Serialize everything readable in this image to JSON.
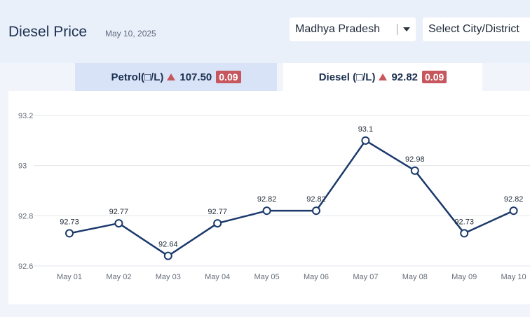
{
  "header": {
    "title": "Diesel Price",
    "date": "May 10, 2025",
    "state_select": "Madhya Pradesh",
    "city_select": "Select City/District"
  },
  "tabs": {
    "petrol": {
      "label": "Petrol(□/L)",
      "price": "107.50",
      "change": "0.09"
    },
    "diesel": {
      "label": "Diesel (□/L)",
      "price": "92.82",
      "change": "0.09"
    }
  },
  "colors": {
    "line": "#1b3a6b",
    "accent": "#c7575e",
    "grid": "#e4e7ec"
  },
  "chart_data": {
    "type": "line",
    "title": "Diesel Price",
    "xlabel": "",
    "ylabel": "",
    "categories": [
      "May 01",
      "May 02",
      "May 03",
      "May 04",
      "May 05",
      "May 06",
      "May 07",
      "May 08",
      "May 09",
      "May 10"
    ],
    "series": [
      {
        "name": "Diesel",
        "values": [
          92.73,
          92.77,
          92.64,
          92.77,
          92.82,
          92.82,
          93.1,
          92.98,
          92.73,
          92.82
        ]
      }
    ],
    "data_labels": [
      "92.73",
      "92.77",
      "92.64",
      "92.77",
      "92.82",
      "92.82",
      "93.1",
      "92.98",
      "92.73",
      "92.82"
    ],
    "y_ticks": [
      "92.6",
      "92.8",
      "93",
      "93.2"
    ],
    "ylim": [
      92.6,
      93.2
    ],
    "grid": true
  }
}
